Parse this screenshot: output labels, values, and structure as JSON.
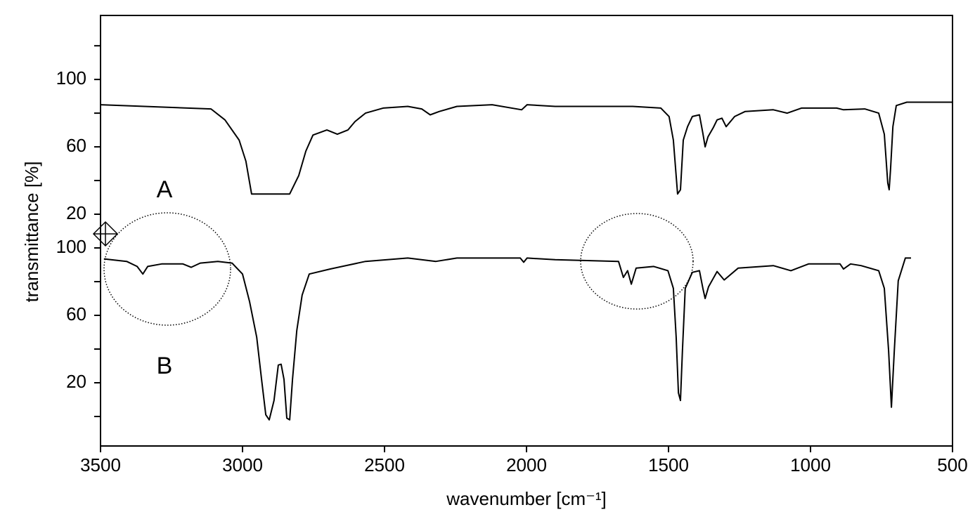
{
  "chart_data": [
    {
      "type": "line",
      "label": "A",
      "color": "#000000",
      "xlabel": "wavenumber [cm⁻¹]",
      "ylabel": "transmittance [%]",
      "xlim": [
        3500,
        500
      ],
      "xticks": [
        3500,
        3000,
        2500,
        2000,
        1500,
        1000,
        500
      ],
      "ylim": [
        10,
        138
      ],
      "yticks": [
        20,
        60,
        100
      ],
      "minor_yticks": [
        40,
        80,
        120
      ],
      "x": [
        3500,
        3111,
        3062,
        3012,
        2988,
        2968,
        2834,
        2802,
        2777,
        2752,
        2703,
        2666,
        2629,
        2604,
        2567,
        2505,
        2418,
        2369,
        2339,
        2307,
        2245,
        2121,
        2017,
        1998,
        1899,
        1750,
        1626,
        1527,
        1498,
        1483,
        1468,
        1458,
        1448,
        1433,
        1416,
        1391,
        1379,
        1371,
        1361,
        1342,
        1329,
        1312,
        1297,
        1267,
        1230,
        1131,
        1082,
        1032,
        908,
        884,
        809,
        760,
        740,
        728,
        723,
        718,
        710,
        698,
        661,
        500
      ],
      "values": [
        85,
        82.5,
        76,
        64,
        51.5,
        32,
        32,
        43,
        57.5,
        67,
        70,
        67.5,
        70,
        75,
        80,
        83,
        84,
        82.5,
        79,
        81,
        84,
        85,
        82,
        85,
        84,
        84,
        84,
        83,
        78,
        64,
        32,
        34.5,
        64,
        72,
        78,
        79,
        68,
        60,
        66,
        71.5,
        76,
        77,
        72,
        78,
        81,
        82,
        80,
        83,
        83,
        82,
        82.5,
        80,
        67.5,
        38.5,
        34.5,
        47,
        72,
        84.5,
        86.5,
        86.5
      ]
    },
    {
      "type": "line",
      "label": "B",
      "color": "#000000",
      "ylim": [
        -17.5,
        110
      ],
      "yticks": [
        20,
        60,
        100
      ],
      "minor_yticks": [
        0,
        40,
        80
      ],
      "x": [
        3488,
        3408,
        3371,
        3351,
        3334,
        3285,
        3210,
        3181,
        3149,
        3087,
        3037,
        3000,
        2975,
        2950,
        2933,
        2918,
        2906,
        2889,
        2874,
        2864,
        2854,
        2844,
        2834,
        2824,
        2809,
        2790,
        2765,
        2691,
        2567,
        2418,
        2319,
        2245,
        2022,
        2010,
        1998,
        1899,
        1676,
        1659,
        1644,
        1631,
        1614,
        1552,
        1502,
        1483,
        1473,
        1465,
        1458,
        1451,
        1441,
        1416,
        1391,
        1379,
        1371,
        1359,
        1329,
        1304,
        1255,
        1131,
        1069,
        1007,
        896,
        884,
        859,
        822,
        760,
        740,
        725,
        715,
        705,
        691,
        666,
        646
      ],
      "values": [
        93.5,
        92,
        89,
        84.5,
        89,
        90.5,
        90.5,
        88.5,
        91,
        92,
        91,
        84.5,
        68,
        47,
        22,
        1,
        -2,
        9.5,
        30.5,
        31,
        22,
        -1,
        -2,
        22,
        51,
        72,
        84.5,
        87.5,
        92,
        94,
        92,
        94,
        94,
        91.5,
        94,
        93,
        92,
        82.5,
        86.5,
        78.5,
        88,
        89,
        86.5,
        76,
        47,
        14,
        9.5,
        39,
        76,
        85.5,
        86.5,
        76,
        70,
        77,
        86,
        81,
        88,
        89.5,
        86.5,
        90.5,
        90.5,
        87.5,
        90.5,
        89.5,
        86.5,
        76,
        39,
        5.5,
        39,
        80.5,
        94,
        94
      ]
    }
  ]
}
